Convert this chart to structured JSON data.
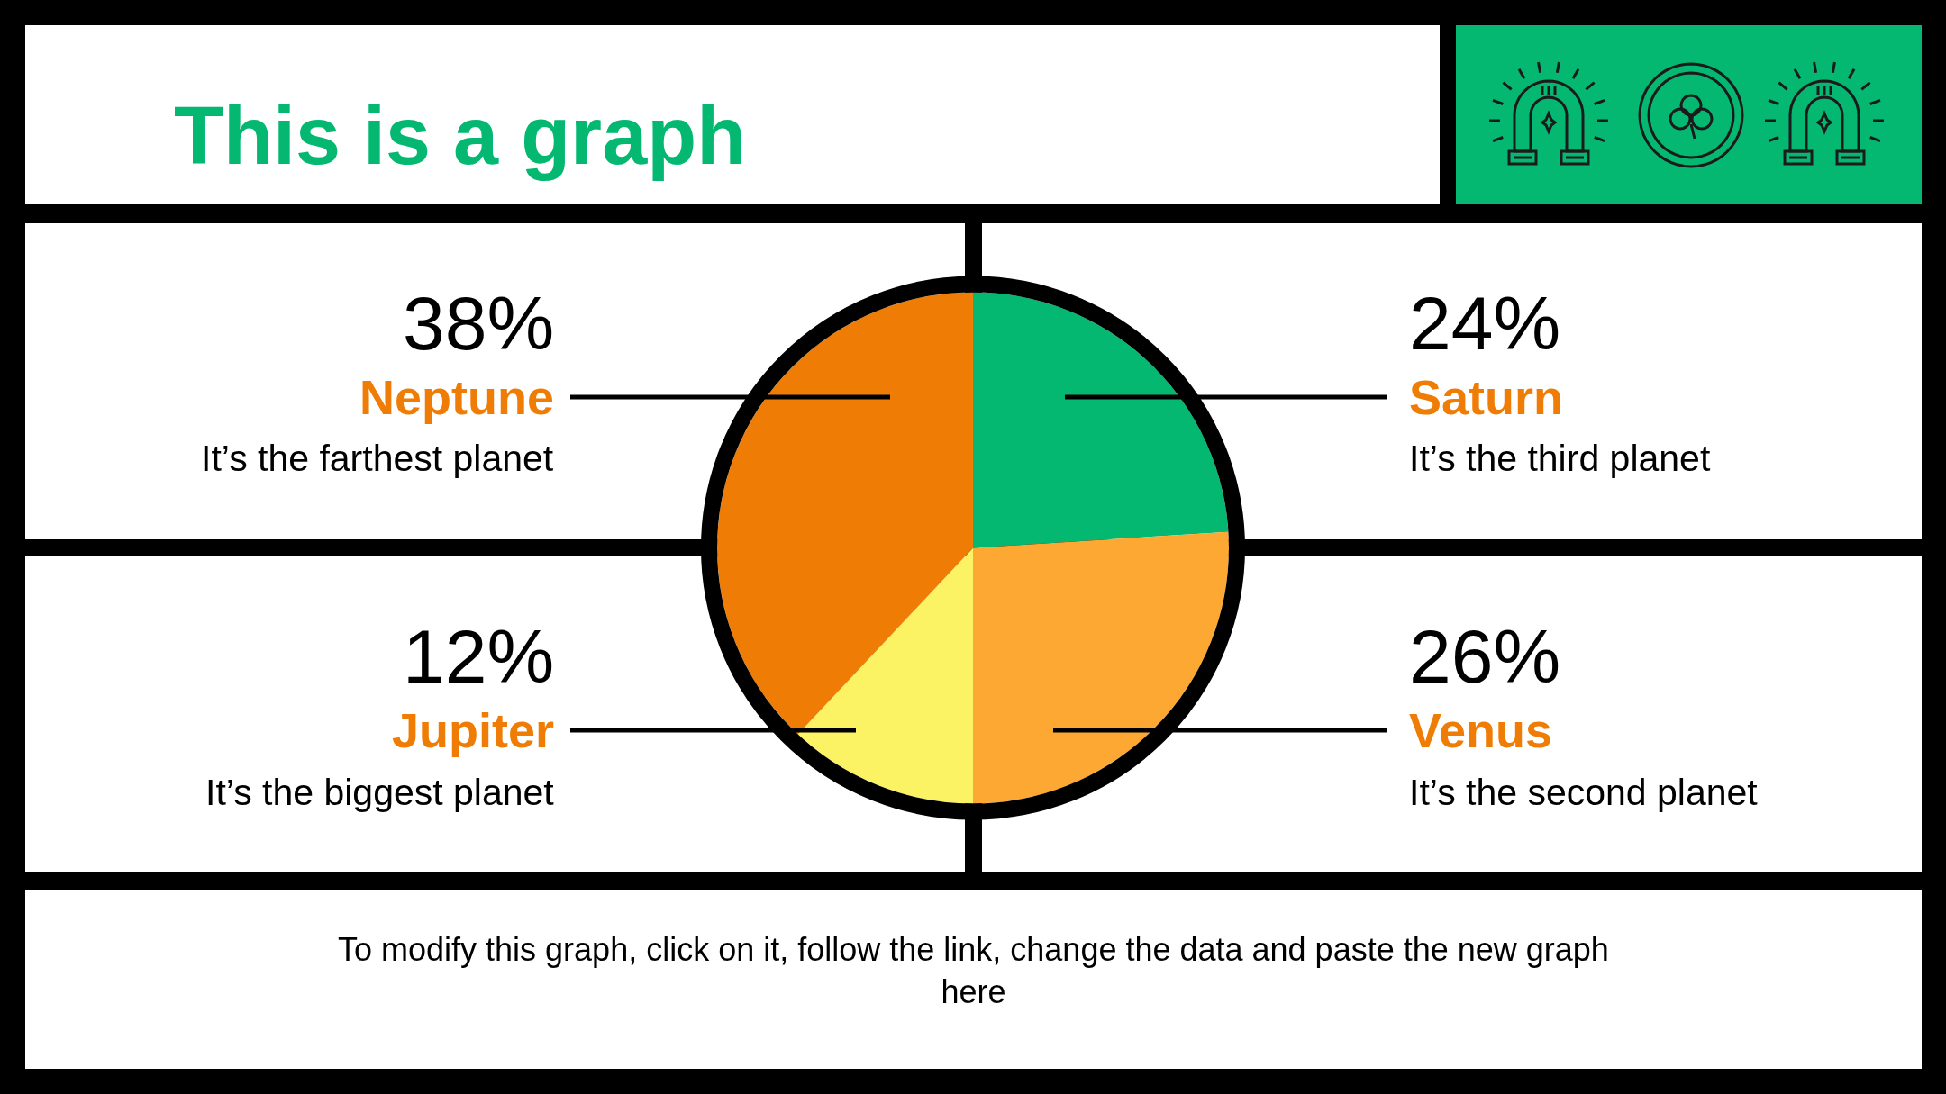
{
  "chart_data": {
    "type": "pie",
    "title": "This is a graph",
    "categories": [
      "Saturn",
      "Venus",
      "Jupiter",
      "Neptune"
    ],
    "values": [
      24,
      26,
      12,
      38
    ],
    "colors": [
      "#05b872",
      "#fda832",
      "#fbf264",
      "#ef7d05"
    ],
    "value_labels": [
      "24%",
      "26%",
      "12%",
      "38%"
    ],
    "annotations": [
      "It’s the third planet",
      "It’s the second planet",
      "It’s the biggest planet",
      "It’s the farthest planet",
      "To modify this graph, click on it, follow the link, change the data and paste the new graph here"
    ]
  }
}
